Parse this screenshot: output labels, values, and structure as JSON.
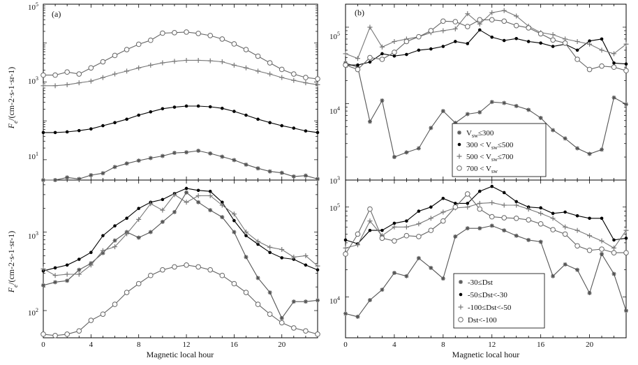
{
  "figure": {
    "panel_a_label": "(a)",
    "panel_b_label": "(b)",
    "xlabel": "Magnetic local hour",
    "ylabel_main": "F",
    "ylabel_sub": "e",
    "ylabel_rest": "/(cm",
    "ylabel_units": "-2·s-1·sr-1)",
    "xticks": [
      "0",
      "4",
      "8",
      "12",
      "16",
      "20"
    ],
    "ytick_labels_a_top": [
      "10",
      "10",
      "10"
    ],
    "ytick_exps_a_top": [
      "5",
      "3",
      "1"
    ],
    "ytick_labels_a_bot": [
      "10",
      "10"
    ],
    "ytick_exps_a_bot": [
      "3",
      "2"
    ],
    "ytick_labels_b": [
      "10",
      "10",
      "10"
    ],
    "ytick_exps_b": [
      "5",
      "4",
      "3"
    ],
    "ytick_labels_b_bot": [
      "10",
      "10"
    ],
    "ytick_exps_b_bot": [
      "5",
      "4"
    ],
    "legend_top": [
      {
        "sym": "star",
        "text": "V",
        "sub": "sw",
        "rest": "≤300"
      },
      {
        "sym": "dot",
        "text": "300 < V",
        "sub": "sw",
        "rest": "≤500"
      },
      {
        "sym": "plus",
        "text": "500 < V",
        "sub": "sw",
        "rest": "≤700"
      },
      {
        "sym": "circle",
        "text": "700 < V",
        "sub": "sw",
        "rest": ""
      }
    ],
    "legend_bot": [
      {
        "sym": "star",
        "text": "-30≤Dst"
      },
      {
        "sym": "dot",
        "text": "-50≤Dst<-30"
      },
      {
        "sym": "plus",
        "text": "-100≤Dst<-50"
      },
      {
        "sym": "circle",
        "text": "Dst<-100"
      }
    ]
  },
  "chart_data": [
    {
      "type": "line",
      "panel": "a-top",
      "yscale": "log",
      "ylim": [
        3,
        100000
      ],
      "xlim": [
        0,
        23
      ],
      "x": [
        0,
        1,
        2,
        3,
        4,
        5,
        6,
        7,
        8,
        9,
        10,
        11,
        12,
        13,
        14,
        15,
        16,
        17,
        18,
        19,
        20,
        21,
        22,
        23
      ],
      "series": [
        {
          "name": "circle",
          "values": [
            1500,
            1500,
            1800,
            1600,
            2300,
            3300,
            4800,
            6800,
            9300,
            11800,
            18000,
            18500,
            19200,
            17700,
            15600,
            12700,
            9500,
            6800,
            4600,
            3100,
            2100,
            1600,
            1300,
            1200
          ]
        },
        {
          "name": "plus",
          "values": [
            800,
            800,
            850,
            950,
            1050,
            1300,
            1600,
            1900,
            2300,
            2700,
            3100,
            3400,
            3600,
            3600,
            3500,
            3300,
            2700,
            2300,
            1900,
            1600,
            1300,
            1100,
            950,
            850
          ]
        },
        {
          "name": "dot",
          "values": [
            50,
            50,
            52,
            56,
            62,
            75,
            90,
            110,
            140,
            170,
            205,
            225,
            240,
            240,
            230,
            210,
            175,
            140,
            110,
            90,
            75,
            65,
            55,
            50
          ]
        },
        {
          "name": "star",
          "values": [
            3,
            3,
            3.5,
            3.2,
            4,
            4.5,
            6.5,
            8,
            9.5,
            11,
            12.5,
            15,
            15.5,
            17,
            14.5,
            12,
            9.8,
            7.5,
            6,
            5,
            4.6,
            3.7,
            3.9,
            3.2
          ]
        }
      ]
    },
    {
      "type": "line",
      "panel": "a-bot",
      "yscale": "log",
      "ylim": [
        45,
        4600
      ],
      "xlim": [
        0,
        23
      ],
      "x": [
        0,
        1,
        2,
        3,
        4,
        5,
        6,
        7,
        8,
        9,
        10,
        11,
        12,
        13,
        14,
        15,
        16,
        17,
        18,
        19,
        20,
        21,
        22,
        23
      ],
      "series": [
        {
          "name": "dot",
          "values": [
            320,
            350,
            380,
            450,
            550,
            900,
            1200,
            1500,
            2000,
            2400,
            2600,
            3100,
            3600,
            3400,
            3300,
            2400,
            1400,
            900,
            700,
            550,
            470,
            450,
            380,
            330
          ]
        },
        {
          "name": "star",
          "values": [
            210,
            230,
            240,
            330,
            400,
            540,
            780,
            1000,
            850,
            1000,
            1350,
            1800,
            3200,
            2400,
            1900,
            1550,
            1000,
            480,
            260,
            170,
            80,
            130,
            130,
            135
          ]
        },
        {
          "name": "plus",
          "values": [
            340,
            280,
            290,
            290,
            380,
            580,
            650,
            950,
            1450,
            2300,
            1900,
            3000,
            2400,
            2900,
            2900,
            2200,
            1700,
            1000,
            760,
            640,
            600,
            480,
            500,
            370
          ]
        },
        {
          "name": "circle",
          "values": [
            50,
            48,
            50,
            55,
            75,
            90,
            120,
            170,
            220,
            280,
            330,
            360,
            380,
            360,
            330,
            280,
            220,
            170,
            120,
            90,
            70,
            60,
            55,
            50
          ]
        }
      ]
    },
    {
      "type": "line",
      "panel": "b-top",
      "yscale": "log",
      "ylim": [
        1000,
        200000
      ],
      "xlim": [
        0,
        23
      ],
      "x": [
        0,
        1,
        2,
        3,
        4,
        5,
        6,
        7,
        8,
        9,
        10,
        11,
        12,
        13,
        14,
        15,
        16,
        17,
        18,
        19,
        20,
        21,
        22,
        23
      ],
      "series": [
        {
          "name": "star",
          "values": [
            34000,
            30000,
            5800,
            11000,
            2000,
            2300,
            2600,
            4800,
            8000,
            5600,
            7300,
            7700,
            10500,
            10200,
            9300,
            8300,
            6500,
            4500,
            3500,
            2600,
            2200,
            2500,
            12000,
            9800
          ]
        },
        {
          "name": "dot",
          "values": [
            32000,
            32000,
            35000,
            45000,
            42000,
            44000,
            50000,
            52000,
            56000,
            65000,
            61000,
            92000,
            74000,
            67000,
            71000,
            65000,
            62000,
            56000,
            60000,
            50000,
            66000,
            70000,
            34000,
            33000
          ]
        },
        {
          "name": "plus",
          "values": [
            45000,
            39000,
            100000,
            55000,
            65000,
            70000,
            75000,
            85000,
            90000,
            95000,
            150000,
            110000,
            155000,
            165000,
            140000,
            103000,
            85000,
            80000,
            70000,
            65000,
            60000,
            50000,
            45000,
            60000
          ]
        },
        {
          "name": "circle",
          "values": [
            32000,
            28000,
            40000,
            38000,
            47000,
            65000,
            75000,
            90000,
            120000,
            118000,
            102000,
            125000,
            125000,
            120000,
            105000,
            98000,
            82000,
            68000,
            62000,
            38000,
            28000,
            31000,
            30000,
            27000
          ]
        }
      ]
    },
    {
      "type": "line",
      "panel": "b-bot",
      "yscale": "log",
      "ylim": [
        3500,
        200000
      ],
      "xlim": [
        0,
        23
      ],
      "x": [
        0,
        1,
        2,
        3,
        4,
        5,
        6,
        7,
        8,
        9,
        10,
        11,
        12,
        13,
        14,
        15,
        16,
        17,
        18,
        19,
        20,
        21,
        22,
        23
      ],
      "series": [
        {
          "name": "star",
          "values": [
            6500,
            6000,
            9200,
            12000,
            18500,
            17000,
            27000,
            21000,
            16000,
            47000,
            58000,
            58000,
            62000,
            55000,
            48000,
            43000,
            41000,
            17000,
            23000,
            20000,
            11000,
            30000,
            18000,
            7000
          ]
        },
        {
          "name": "dot",
          "values": [
            43000,
            39000,
            55000,
            55000,
            66000,
            70000,
            90000,
            100000,
            125000,
            110000,
            110000,
            150000,
            170000,
            145000,
            115000,
            100000,
            98000,
            85000,
            88000,
            80000,
            75000,
            75000,
            43000,
            45000
          ]
        },
        {
          "name": "plus",
          "values": [
            35000,
            38000,
            70000,
            48000,
            60000,
            60000,
            65000,
            75000,
            88000,
            98000,
            100000,
            110000,
            112000,
            105000,
            105000,
            95000,
            85000,
            75000,
            60000,
            55000,
            48000,
            42000,
            35000,
            55000
          ]
        },
        {
          "name": "circle",
          "values": [
            30000,
            50000,
            95000,
            45000,
            42000,
            48000,
            47000,
            55000,
            70000,
            100000,
            140000,
            95000,
            78000,
            76000,
            75000,
            72000,
            65000,
            56000,
            50000,
            37000,
            33000,
            34000,
            31000,
            31000
          ]
        }
      ]
    }
  ]
}
